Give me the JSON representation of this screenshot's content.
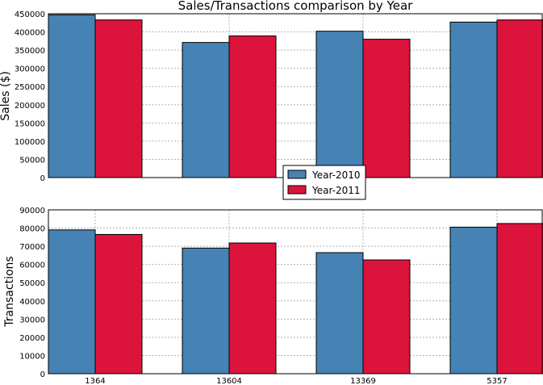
{
  "chart_data": [
    {
      "type": "bar",
      "title": "Sales/Transactions comparison by Year",
      "ylabel": "Sales ($)",
      "xlabel": "",
      "categories": [
        "1364",
        "13604",
        "13369",
        "5357"
      ],
      "ylim": [
        0,
        450000
      ],
      "yticks": [
        0,
        50000,
        100000,
        150000,
        200000,
        250000,
        300000,
        350000,
        400000,
        450000
      ],
      "grid": true,
      "series": [
        {
          "name": "Year-2010",
          "color": "#4682b4",
          "values": [
            447000,
            371000,
            402000,
            427000
          ]
        },
        {
          "name": "Year-2011",
          "color": "#dc143c",
          "values": [
            433000,
            389000,
            380000,
            433000
          ]
        }
      ],
      "legend": {
        "placement": "bottom-center"
      }
    },
    {
      "type": "bar",
      "ylabel": "Transactions",
      "xlabel": "",
      "categories": [
        "1364",
        "13604",
        "13369",
        "5357"
      ],
      "ylim": [
        0,
        90000
      ],
      "yticks": [
        0,
        10000,
        20000,
        30000,
        40000,
        50000,
        60000,
        70000,
        80000,
        90000
      ],
      "grid": true,
      "series": [
        {
          "name": "Year-2010",
          "color": "#4682b4",
          "values": [
            79000,
            69000,
            66500,
            80500
          ]
        },
        {
          "name": "Year-2011",
          "color": "#dc143c",
          "values": [
            76500,
            71800,
            62500,
            82500
          ]
        }
      ]
    }
  ]
}
